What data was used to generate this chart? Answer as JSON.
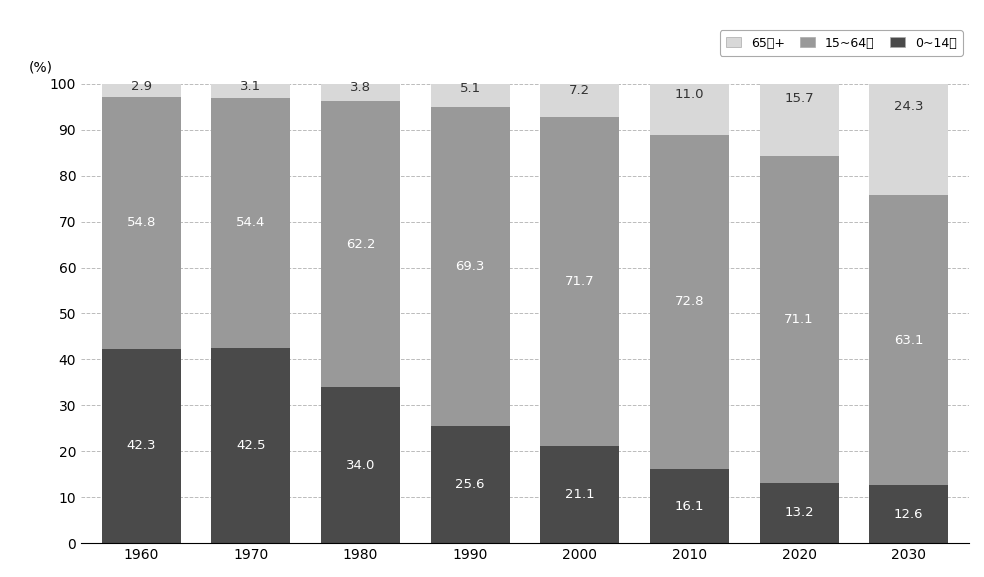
{
  "years": [
    "1960",
    "1970",
    "1980",
    "1990",
    "2000",
    "2010",
    "2020",
    "2030"
  ],
  "age_0_14": [
    42.3,
    42.5,
    34.0,
    25.6,
    21.1,
    16.1,
    13.2,
    12.6
  ],
  "age_15_64": [
    54.8,
    54.4,
    62.2,
    69.3,
    71.7,
    72.8,
    71.1,
    63.1
  ],
  "age_65plus": [
    2.9,
    3.1,
    3.8,
    5.1,
    7.2,
    11.0,
    15.7,
    24.3
  ],
  "color_0_14": "#4a4a4a",
  "color_15_64": "#999999",
  "color_65plus": "#d8d8d8",
  "bar_width": 0.72,
  "ylim": [
    0,
    100
  ],
  "yticks": [
    0,
    10,
    20,
    30,
    40,
    50,
    60,
    70,
    80,
    90,
    100
  ],
  "ylabel": "(%)",
  "background_color": "#ffffff",
  "grid_color": "#bbbbbb",
  "fontsize_label": 9.5,
  "fontsize_axis": 10,
  "fontsize_ylabel": 10,
  "legend_65": "65세+",
  "legend_15": "15~64세",
  "legend_0": "0~14세"
}
